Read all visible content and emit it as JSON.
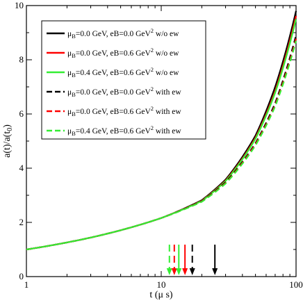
{
  "chart_data": {
    "type": "line",
    "xlabel": "t (μ s)",
    "ylabel": "a(t)/a(t0)",
    "x_scale": "log",
    "xlim": [
      1,
      100
    ],
    "ylim": [
      0,
      10
    ],
    "x_ticks": [
      "1",
      "10",
      "100"
    ],
    "y_ticks": [
      "0",
      "2",
      "4",
      "6",
      "8",
      "10"
    ],
    "grid": false,
    "legend_position": "top-left",
    "series": [
      {
        "name": "μB=0.0 GeV, eB=0.0 GeV² w/o ew",
        "color": "#000000",
        "dash": "solid",
        "x": [
          1,
          2,
          3,
          5,
          10,
          20,
          30,
          50,
          70,
          100
        ],
        "y": [
          1.0,
          1.26,
          1.44,
          1.71,
          2.16,
          2.82,
          3.58,
          5.2,
          7.0,
          9.8
        ]
      },
      {
        "name": "μB=0.0 GeV, eB=0.6 GeV² w/o ew",
        "color": "#ff0000",
        "dash": "solid",
        "x": [
          1,
          2,
          3,
          5,
          10,
          20,
          30,
          50,
          70,
          100
        ],
        "y": [
          1.0,
          1.26,
          1.44,
          1.71,
          2.16,
          2.8,
          3.54,
          5.12,
          6.85,
          9.62
        ]
      },
      {
        "name": "μB=0.4 GeV, eB=0.6 GeV² w/o ew",
        "color": "#33ee33",
        "dash": "solid",
        "x": [
          1,
          2,
          3,
          5,
          10,
          20,
          30,
          50,
          70,
          100
        ],
        "y": [
          1.0,
          1.26,
          1.44,
          1.71,
          2.16,
          2.79,
          3.52,
          5.08,
          6.78,
          9.5
        ]
      },
      {
        "name": "μB=0.0 GeV, eB=0.0 GeV² with ew",
        "color": "#000000",
        "dash": "dashed",
        "x": [
          1,
          2,
          3,
          5,
          10,
          20,
          30,
          50,
          70,
          100
        ],
        "y": [
          1.0,
          1.26,
          1.44,
          1.71,
          2.16,
          2.78,
          3.48,
          4.92,
          6.4,
          8.9
        ]
      },
      {
        "name": "μB=0.0 GeV, eB=0.6 GeV² with ew",
        "color": "#ff0000",
        "dash": "dashed",
        "x": [
          1,
          2,
          3,
          5,
          10,
          20,
          30,
          50,
          70,
          100
        ],
        "y": [
          1.0,
          1.26,
          1.44,
          1.71,
          2.16,
          2.77,
          3.45,
          4.88,
          6.33,
          8.78
        ]
      },
      {
        "name": "μB=0.4 GeV, eB=0.6 GeV² with ew",
        "color": "#33ee33",
        "dash": "dashed",
        "x": [
          1,
          2,
          3,
          5,
          10,
          20,
          30,
          50,
          70,
          100
        ],
        "y": [
          1.0,
          1.26,
          1.44,
          1.71,
          2.16,
          2.76,
          3.43,
          4.84,
          6.28,
          8.7
        ]
      }
    ],
    "arrows": [
      {
        "x": 11.5,
        "color": "#33ee33",
        "dash": "dashed"
      },
      {
        "x": 12.5,
        "color": "#ff0000",
        "dash": "dashed"
      },
      {
        "x": 13.5,
        "color": "#33ee33",
        "dash": "solid"
      },
      {
        "x": 15.0,
        "color": "#ff0000",
        "dash": "solid"
      },
      {
        "x": 17.0,
        "color": "#000000",
        "dash": "dashed"
      },
      {
        "x": 25.0,
        "color": "#000000",
        "dash": "solid"
      }
    ]
  },
  "legend": {
    "items": [
      {
        "prefix": "μ",
        "sub": "B",
        "text": "=0.0 GeV, eB=0.0 GeV",
        "sup": "2",
        "suffix": " w/o ew"
      },
      {
        "prefix": "μ",
        "sub": "B",
        "text": "=0.0 GeV, eB=0.6 GeV",
        "sup": "2",
        "suffix": " w/o ew"
      },
      {
        "prefix": "μ",
        "sub": "B",
        "text": "=0.4 GeV, eB=0.6 GeV",
        "sup": "2",
        "suffix": " w/o ew"
      },
      {
        "prefix": "μ",
        "sub": "B",
        "text": "=0.0 GeV, eB=0.0 GeV",
        "sup": "2",
        "suffix": " with ew"
      },
      {
        "prefix": "μ",
        "sub": "B",
        "text": "=0.0 GeV, eB=0.6 GeV",
        "sup": "2",
        "suffix": " with ew"
      },
      {
        "prefix": "μ",
        "sub": "B",
        "text": "=0.4 GeV, eB=0.6 GeV",
        "sup": "2",
        "suffix": " with ew"
      }
    ]
  },
  "ylabel_parts": {
    "main": "a(t)/a(t",
    "sub": "0",
    "close": ")"
  }
}
